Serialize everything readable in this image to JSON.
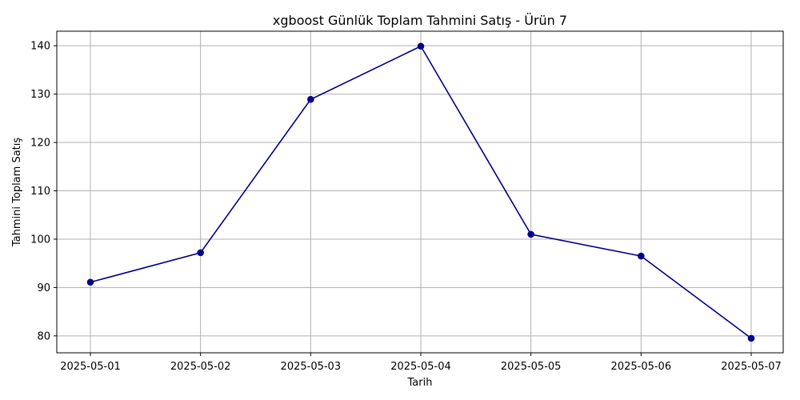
{
  "chart_data": {
    "type": "line",
    "title": "xgboost Günlük Toplam Tahmini Satış - Ürün 7",
    "xlabel": "Tarih",
    "ylabel": "Tahmini Toplam Satış",
    "x": [
      "2025-05-01",
      "2025-05-02",
      "2025-05-03",
      "2025-05-04",
      "2025-05-05",
      "2025-05-06",
      "2025-05-07"
    ],
    "series": [
      {
        "values": [
          91.1,
          97.2,
          128.9,
          139.9,
          101.0,
          96.5,
          79.5
        ],
        "color": "#00008b",
        "marker": "circle"
      }
    ],
    "yticks": [
      80,
      90,
      100,
      110,
      120,
      130,
      140
    ],
    "ylim": [
      76.5,
      143
    ],
    "grid": true
  }
}
